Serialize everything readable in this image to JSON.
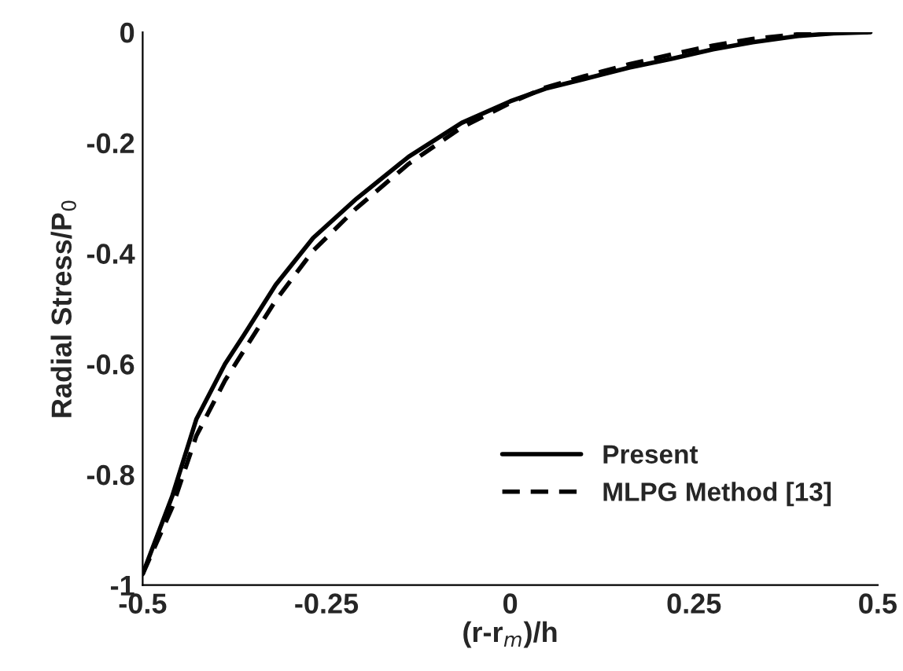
{
  "chart_data": {
    "type": "line",
    "xlabel": "(r-r$_{m}$)/h",
    "ylabel": "Radial Stress/P$_{0}$",
    "xlim": [
      -0.5,
      0.5
    ],
    "ylim": [
      -1,
      0
    ],
    "xticks": [
      -0.5,
      -0.25,
      0,
      0.25,
      0.5
    ],
    "yticks": [
      -1,
      -0.8,
      -0.6,
      -0.4,
      -0.2,
      0
    ],
    "grid": false,
    "legend": "bottom right",
    "series": [
      {
        "name": "Present",
        "color": "#000000",
        "line_style": "solid",
        "x": [
          -0.5,
          -0.46,
          -0.427,
          -0.388,
          -0.362,
          -0.319,
          -0.268,
          -0.209,
          -0.138,
          -0.066,
          0.0,
          0.048,
          0.1,
          0.162,
          0.22,
          0.276,
          0.33,
          0.39,
          0.44,
          0.49
        ],
        "values": [
          -0.98,
          -0.84,
          -0.7,
          -0.6,
          -0.547,
          -0.457,
          -0.372,
          -0.301,
          -0.225,
          -0.164,
          -0.125,
          -0.102,
          -0.085,
          -0.064,
          -0.048,
          -0.031,
          -0.018,
          -0.007,
          -0.002,
          0
        ]
      },
      {
        "name": "MLPG Method [13]",
        "color": "#000000",
        "line_style": "dashed",
        "x": [
          -0.5,
          -0.46,
          -0.427,
          -0.388,
          -0.362,
          -0.319,
          -0.268,
          -0.209,
          -0.138,
          -0.066,
          0.0,
          0.048,
          0.1,
          0.162,
          0.22,
          0.276,
          0.33,
          0.39,
          0.44,
          0.49
        ],
        "values": [
          -0.98,
          -0.86,
          -0.73,
          -0.63,
          -0.575,
          -0.485,
          -0.395,
          -0.318,
          -0.238,
          -0.172,
          -0.128,
          -0.1,
          -0.08,
          -0.058,
          -0.04,
          -0.024,
          -0.012,
          -0.004,
          0.0,
          0
        ]
      }
    ]
  }
}
